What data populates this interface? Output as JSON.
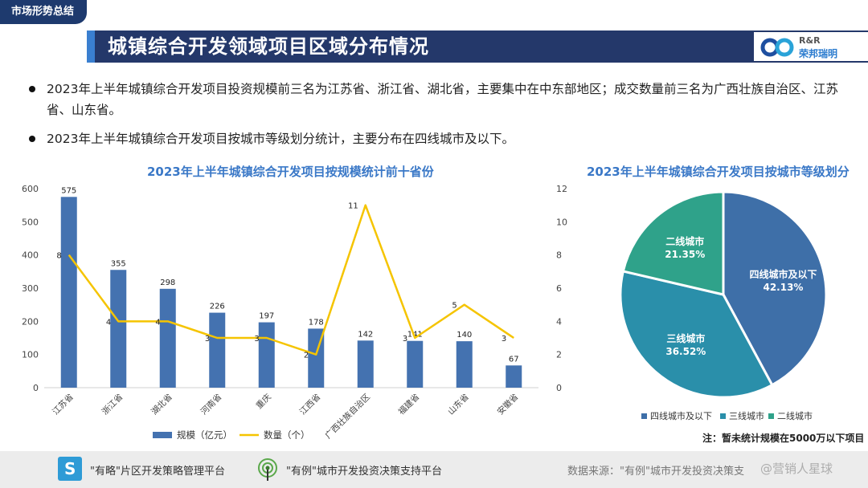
{
  "header": {
    "section_tag": "市场形势总结",
    "title": "城镇综合开发领域项目区域分布情况",
    "logo_en": "R&R",
    "logo_cn": "荣邦瑞明"
  },
  "bullets": [
    "2023年上半年城镇综合开发项目投资规模前三名为江苏省、浙江省、湖北省，主要集中在中东部地区；成交数量前三名为广西壮族自治区、江苏省、山东省。",
    "2023年上半年城镇综合开发项目按城市等级划分统计，主要分布在四线城市及以下。"
  ],
  "colors": {
    "bar": "#4472b0",
    "line": "#f5c400",
    "pie": [
      "#3e6fa8",
      "#2a8faa",
      "#2fa28a"
    ]
  },
  "chart_data": [
    {
      "type": "bar",
      "title": "2023年上半年城镇综合开发项目按规模统计前十省份",
      "categories": [
        "江苏省",
        "浙江省",
        "湖北省",
        "河南省",
        "重庆",
        "江西省",
        "广西壮族自治区",
        "福建省",
        "山东省",
        "安徽省"
      ],
      "series": [
        {
          "name": "规模（亿元）",
          "type": "bar",
          "axis": "left",
          "values": [
            575,
            355,
            298,
            226,
            197,
            178,
            142,
            141,
            140,
            67
          ]
        },
        {
          "name": "数量（个）",
          "type": "line",
          "axis": "right",
          "values": [
            8,
            4,
            4,
            3,
            3,
            2,
            11,
            3,
            5,
            3
          ]
        }
      ],
      "ylim": [
        0,
        600
      ],
      "yticks": [
        0,
        100,
        200,
        300,
        400,
        500,
        600
      ],
      "y2lim": [
        0,
        12
      ],
      "y2ticks": [
        0,
        2,
        4,
        6,
        8,
        10,
        12
      ],
      "legend": "bottom"
    },
    {
      "type": "pie",
      "title": "2023年上半年城镇综合开发项目按城市等级划分",
      "labels": [
        "四线城市及以下",
        "三线城市",
        "二线城市"
      ],
      "values": [
        42.13,
        36.52,
        21.35
      ],
      "value_labels": [
        "42.13%",
        "36.52%",
        "21.35%"
      ],
      "legend": "bottom",
      "note": "注：暂未统计规模在5000万以下项目"
    }
  ],
  "footer": {
    "platform1": "\"有略\"片区开发策略管理平台",
    "platform2": "\"有例\"城市开发投资决策支持平台",
    "source": "数据来源：\"有例\"城市开发投资决策支",
    "watermark": "@营销人星球"
  }
}
